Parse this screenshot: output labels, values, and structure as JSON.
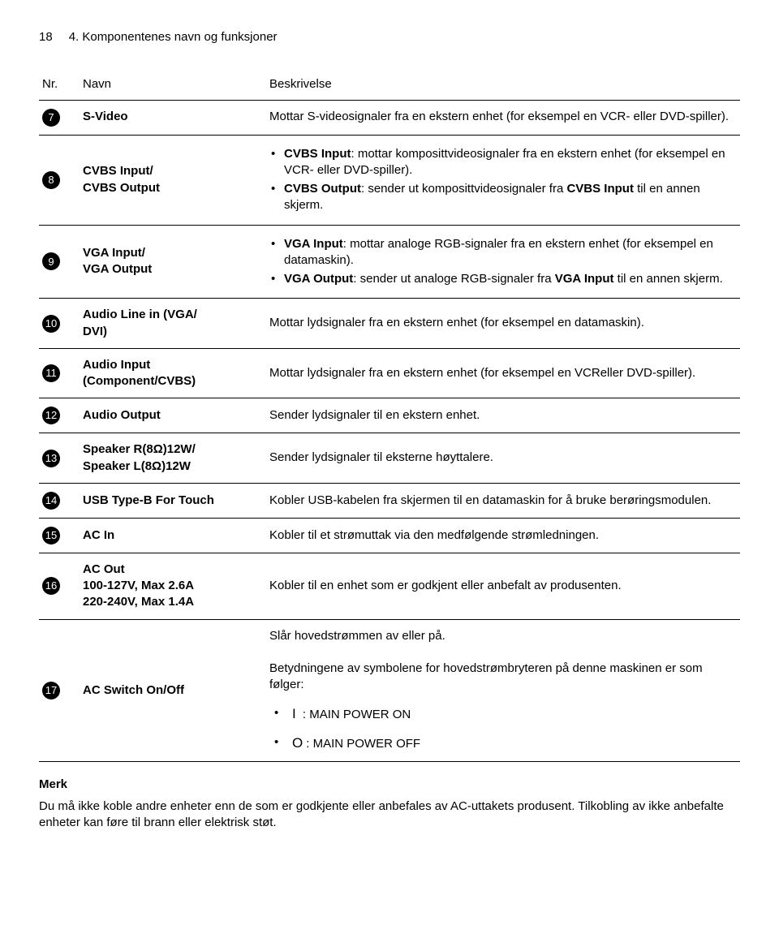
{
  "header": {
    "page_number": "18",
    "chapter": "4. Komponentenes navn og funksjoner"
  },
  "columns": {
    "nr": "Nr.",
    "name": "Navn",
    "desc": "Beskrivelse"
  },
  "rows": [
    {
      "n": "7",
      "name": "S-Video",
      "desc": "Mottar S-videosignaler fra en ekstern enhet (for eksempel en VCR- eller DVD-spiller)."
    },
    {
      "n": "8",
      "name_html": "CVBS Input/<br>CVBS Output",
      "bullets": [
        "<span class='bold'>CVBS Input</span>: mottar komposittvideosignaler fra en ekstern enhet (for eksempel en VCR- eller DVD-spiller).",
        "<span class='bold'>CVBS Output</span>: sender ut komposittvideosignaler fra <span class='bold'>CVBS Input</span> til en annen skjerm."
      ]
    },
    {
      "n": "9",
      "name_html": "VGA Input/<br>VGA Output",
      "bullets": [
        "<span class='bold'>VGA Input</span>: mottar analoge RGB-signaler fra en ekstern enhet (for eksempel en datamaskin).",
        "<span class='bold'>VGA Output</span>: sender ut analoge RGB-signaler fra <span class='bold'>VGA Input</span> til en annen skjerm."
      ]
    },
    {
      "n": "10",
      "name_html": "Audio Line in (VGA/<br>DVI)",
      "desc": "Mottar lydsignaler fra en ekstern enhet (for eksempel en datamaskin)."
    },
    {
      "n": "11",
      "name_html": "Audio Input<br>(Component/CVBS)",
      "desc": "Mottar lydsignaler fra en ekstern enhet (for eksempel en VCReller DVD-spiller)."
    },
    {
      "n": "12",
      "name": "Audio Output",
      "desc": "Sender lydsignaler til en ekstern enhet."
    },
    {
      "n": "13",
      "name_html": "Speaker R(8Ω)12W/<br>Speaker L(8Ω)12W",
      "desc": "Sender lydsignaler til eksterne høyttalere."
    },
    {
      "n": "14",
      "name": "USB Type-B For Touch",
      "desc": "Kobler USB-kabelen fra skjermen til en datamaskin for å bruke berøringsmodulen."
    },
    {
      "n": "15",
      "name": "AC In",
      "desc": "Kobler til et strømuttak via den medfølgende strømledningen."
    },
    {
      "n": "16",
      "name_html": "AC Out<br>100-127V, Max 2.6A<br>220-240V, Max 1.4A",
      "desc": "Kobler til en enhet som er godkjent eller anbefalt av produsenten."
    },
    {
      "n": "17",
      "name": "AC Switch On/Off",
      "desc_html": "Slår hovedstrømmen av eller på.<br><br>Betydningene av symbolene for hovedstrømbryteren på denne maskinen er som følger:",
      "symbol_lines": [
        {
          "sym": "I",
          "label": " : MAIN POWER ON"
        },
        {
          "sym": "O",
          "label": ": MAIN POWER OFF"
        }
      ]
    }
  ],
  "note": {
    "heading": "Merk",
    "text": "Du må ikke koble andre enheter enn de som er godkjente eller anbefales av AC-uttakets produsent. Tilkobling av ikke anbefalte enheter kan føre til brann eller elektrisk støt."
  }
}
